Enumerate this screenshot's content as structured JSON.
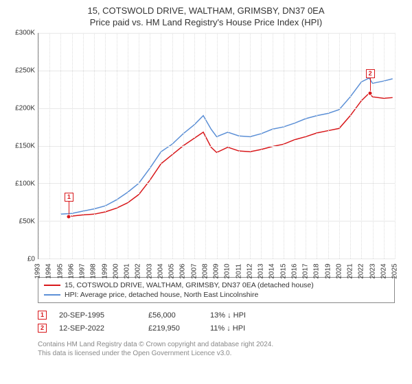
{
  "title_line1": "15, COTSWOLD DRIVE, WALTHAM, GRIMSBY, DN37 0EA",
  "title_line2": "Price paid vs. HM Land Registry's House Price Index (HPI)",
  "chart": {
    "type": "line",
    "background_color": "#ffffff",
    "grid_color": "#e8e8e8",
    "axis_color": "#888888",
    "xlim": [
      1993,
      2025
    ],
    "ylim": [
      0,
      300000
    ],
    "ytick_step": 50000,
    "yticks": [
      "£0",
      "£50K",
      "£100K",
      "£150K",
      "£200K",
      "£250K",
      "£300K"
    ],
    "xticks": [
      1993,
      1994,
      1995,
      1996,
      1997,
      1998,
      1999,
      2000,
      2001,
      2002,
      2003,
      2004,
      2005,
      2006,
      2007,
      2008,
      2009,
      2010,
      2011,
      2012,
      2013,
      2014,
      2015,
      2016,
      2017,
      2018,
      2019,
      2020,
      2021,
      2022,
      2023,
      2024,
      2025
    ],
    "label_fontsize": 10,
    "series": [
      {
        "name": "price_paid",
        "color": "#d8171a",
        "line_width": 1.5,
        "points": [
          [
            1995.7,
            56000
          ],
          [
            1996,
            56500
          ],
          [
            1997,
            58000
          ],
          [
            1998,
            59000
          ],
          [
            1999,
            62000
          ],
          [
            2000,
            67000
          ],
          [
            2001,
            74000
          ],
          [
            2002,
            85000
          ],
          [
            2003,
            104000
          ],
          [
            2004,
            126000
          ],
          [
            2005,
            138000
          ],
          [
            2006,
            150000
          ],
          [
            2007,
            160000
          ],
          [
            2007.8,
            168000
          ],
          [
            2008.5,
            148000
          ],
          [
            2009,
            141000
          ],
          [
            2010,
            148000
          ],
          [
            2011,
            143000
          ],
          [
            2012,
            142000
          ],
          [
            2013,
            145000
          ],
          [
            2014,
            149000
          ],
          [
            2015,
            152000
          ],
          [
            2016,
            158000
          ],
          [
            2017,
            162000
          ],
          [
            2018,
            167000
          ],
          [
            2019,
            170000
          ],
          [
            2020,
            173000
          ],
          [
            2021,
            190000
          ],
          [
            2022,
            210000
          ],
          [
            2022.7,
            219950
          ],
          [
            2023,
            215000
          ],
          [
            2024,
            213000
          ],
          [
            2024.8,
            214000
          ]
        ]
      },
      {
        "name": "hpi",
        "color": "#5b8fd6",
        "line_width": 1.5,
        "points": [
          [
            1995,
            59000
          ],
          [
            1996,
            60000
          ],
          [
            1997,
            63000
          ],
          [
            1998,
            66000
          ],
          [
            1999,
            70000
          ],
          [
            2000,
            78000
          ],
          [
            2001,
            88000
          ],
          [
            2002,
            100000
          ],
          [
            2003,
            120000
          ],
          [
            2004,
            142000
          ],
          [
            2005,
            152000
          ],
          [
            2006,
            166000
          ],
          [
            2007,
            178000
          ],
          [
            2007.8,
            190000
          ],
          [
            2008.5,
            172000
          ],
          [
            2009,
            162000
          ],
          [
            2010,
            168000
          ],
          [
            2011,
            163000
          ],
          [
            2012,
            162000
          ],
          [
            2013,
            166000
          ],
          [
            2014,
            172000
          ],
          [
            2015,
            175000
          ],
          [
            2016,
            180000
          ],
          [
            2017,
            186000
          ],
          [
            2018,
            190000
          ],
          [
            2019,
            193000
          ],
          [
            2020,
            198000
          ],
          [
            2021,
            215000
          ],
          [
            2022,
            235000
          ],
          [
            2022.7,
            240000
          ],
          [
            2023,
            233000
          ],
          [
            2024,
            236000
          ],
          [
            2024.8,
            239000
          ]
        ]
      }
    ],
    "markers": [
      {
        "num": "1",
        "x": 1995.7,
        "y": 56000,
        "color": "#d8171a"
      },
      {
        "num": "2",
        "x": 2022.7,
        "y": 219950,
        "color": "#d8171a"
      }
    ]
  },
  "legend": {
    "items": [
      {
        "color": "#d8171a",
        "label": "15, COTSWOLD DRIVE, WALTHAM, GRIMSBY, DN37 0EA (detached house)"
      },
      {
        "color": "#5b8fd6",
        "label": "HPI: Average price, detached house, North East Lincolnshire"
      }
    ]
  },
  "callouts": [
    {
      "num": "1",
      "color": "#d8171a",
      "date": "20-SEP-1995",
      "price": "£56,000",
      "pct": "13% ↓ HPI"
    },
    {
      "num": "2",
      "color": "#d8171a",
      "date": "12-SEP-2022",
      "price": "£219,950",
      "pct": "11% ↓ HPI"
    }
  ],
  "footer_line1": "Contains HM Land Registry data © Crown copyright and database right 2024.",
  "footer_line2": "This data is licensed under the Open Government Licence v3.0."
}
